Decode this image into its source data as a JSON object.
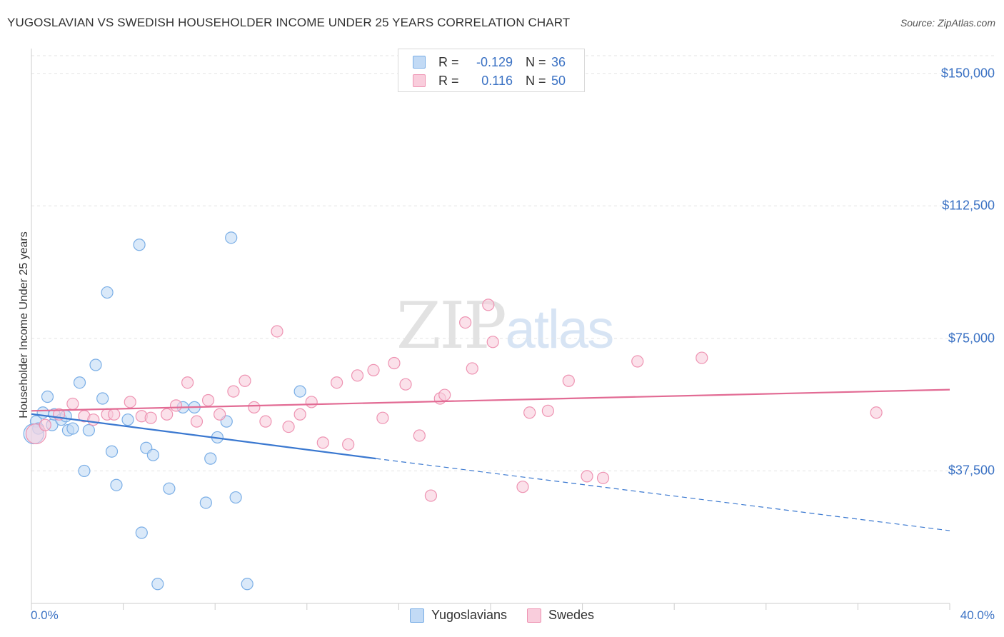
{
  "title": "YUGOSLAVIAN VS SWEDISH HOUSEHOLDER INCOME UNDER 25 YEARS CORRELATION CHART",
  "source": "Source: ZipAtlas.com",
  "watermark": {
    "zip": "ZIP",
    "atlas": "atlas"
  },
  "stats": [
    {
      "r_label": "R =",
      "r_value": "-0.129",
      "n_label": "N =",
      "n_value": "36",
      "color": "#9cc3ef"
    },
    {
      "r_label": "R =",
      "r_value": "0.116",
      "n_label": "N =",
      "n_value": "50",
      "color": "#f6b6cb"
    }
  ],
  "chart_data": {
    "type": "scatter",
    "title": "YUGOSLAVIAN VS SWEDISH HOUSEHOLDER INCOME UNDER 25 YEARS CORRELATION CHART",
    "xlabel": "",
    "ylabel": "Householder Income Under 25 years",
    "xlim": [
      0,
      40
    ],
    "ylim": [
      0,
      155000
    ],
    "x_tick_labels": [
      "0.0%",
      "40.0%"
    ],
    "y_ticks": [
      37500,
      75000,
      112500,
      150000
    ],
    "y_tick_labels": [
      "$37,500",
      "$75,000",
      "$112,500",
      "$150,000"
    ],
    "grid": true,
    "legend_position": "bottom",
    "series": [
      {
        "name": "Yugoslavians",
        "color": "#7aaee6",
        "fill": "#c2daf5",
        "trend": {
          "x": [
            0,
            15
          ],
          "y": [
            53600,
            41000
          ],
          "dashed_to": [
            40,
            20600
          ]
        },
        "points": [
          [
            0.2,
            51500
          ],
          [
            0.3,
            49500
          ],
          [
            0.5,
            54000
          ],
          [
            0.7,
            58500
          ],
          [
            0.9,
            50500
          ],
          [
            1.0,
            53500
          ],
          [
            1.3,
            52000
          ],
          [
            1.5,
            53000
          ],
          [
            1.6,
            49000
          ],
          [
            1.8,
            49500
          ],
          [
            2.1,
            62500
          ],
          [
            2.3,
            37500
          ],
          [
            2.5,
            49000
          ],
          [
            2.8,
            67500
          ],
          [
            3.1,
            58000
          ],
          [
            3.3,
            88000
          ],
          [
            3.5,
            43000
          ],
          [
            3.7,
            33500
          ],
          [
            4.2,
            52000
          ],
          [
            4.7,
            101500
          ],
          [
            4.8,
            20000
          ],
          [
            5.0,
            44000
          ],
          [
            5.3,
            42000
          ],
          [
            5.5,
            5500
          ],
          [
            6.0,
            32500
          ],
          [
            6.6,
            55500
          ],
          [
            7.1,
            55500
          ],
          [
            7.6,
            28500
          ],
          [
            7.8,
            41000
          ],
          [
            8.1,
            47000
          ],
          [
            8.5,
            51500
          ],
          [
            8.7,
            103500
          ],
          [
            8.9,
            30000
          ],
          [
            9.4,
            5500
          ],
          [
            11.7,
            60000
          ],
          [
            0.1,
            48000
          ]
        ]
      },
      {
        "name": "Swedes",
        "color": "#ee93b2",
        "fill": "#f9cddc",
        "trend": {
          "x": [
            0,
            40
          ],
          "y": [
            54500,
            60500
          ]
        },
        "points": [
          [
            0.2,
            48000
          ],
          [
            0.6,
            50500
          ],
          [
            1.2,
            53500
          ],
          [
            1.8,
            56500
          ],
          [
            2.3,
            53000
          ],
          [
            2.7,
            52000
          ],
          [
            3.3,
            53500
          ],
          [
            3.6,
            53500
          ],
          [
            4.3,
            57000
          ],
          [
            4.8,
            53000
          ],
          [
            5.2,
            52500
          ],
          [
            5.9,
            53500
          ],
          [
            6.3,
            56000
          ],
          [
            6.8,
            62500
          ],
          [
            7.2,
            51500
          ],
          [
            7.7,
            57500
          ],
          [
            8.2,
            53500
          ],
          [
            8.8,
            60000
          ],
          [
            9.3,
            63000
          ],
          [
            9.7,
            55500
          ],
          [
            10.2,
            51500
          ],
          [
            10.7,
            77000
          ],
          [
            11.2,
            50000
          ],
          [
            11.7,
            53500
          ],
          [
            12.2,
            57000
          ],
          [
            12.7,
            45500
          ],
          [
            13.3,
            62500
          ],
          [
            13.8,
            45000
          ],
          [
            14.2,
            64500
          ],
          [
            14.9,
            66000
          ],
          [
            15.3,
            52500
          ],
          [
            15.8,
            68000
          ],
          [
            16.3,
            62000
          ],
          [
            16.9,
            47500
          ],
          [
            17.4,
            30500
          ],
          [
            17.8,
            58000
          ],
          [
            18.0,
            59000
          ],
          [
            18.9,
            79500
          ],
          [
            19.2,
            66500
          ],
          [
            19.9,
            84500
          ],
          [
            20.1,
            74000
          ],
          [
            21.4,
            33000
          ],
          [
            21.7,
            54000
          ],
          [
            22.5,
            54500
          ],
          [
            23.4,
            63000
          ],
          [
            24.2,
            36000
          ],
          [
            24.9,
            35500
          ],
          [
            26.4,
            68500
          ],
          [
            29.2,
            69500
          ],
          [
            36.8,
            54000
          ]
        ]
      }
    ]
  }
}
